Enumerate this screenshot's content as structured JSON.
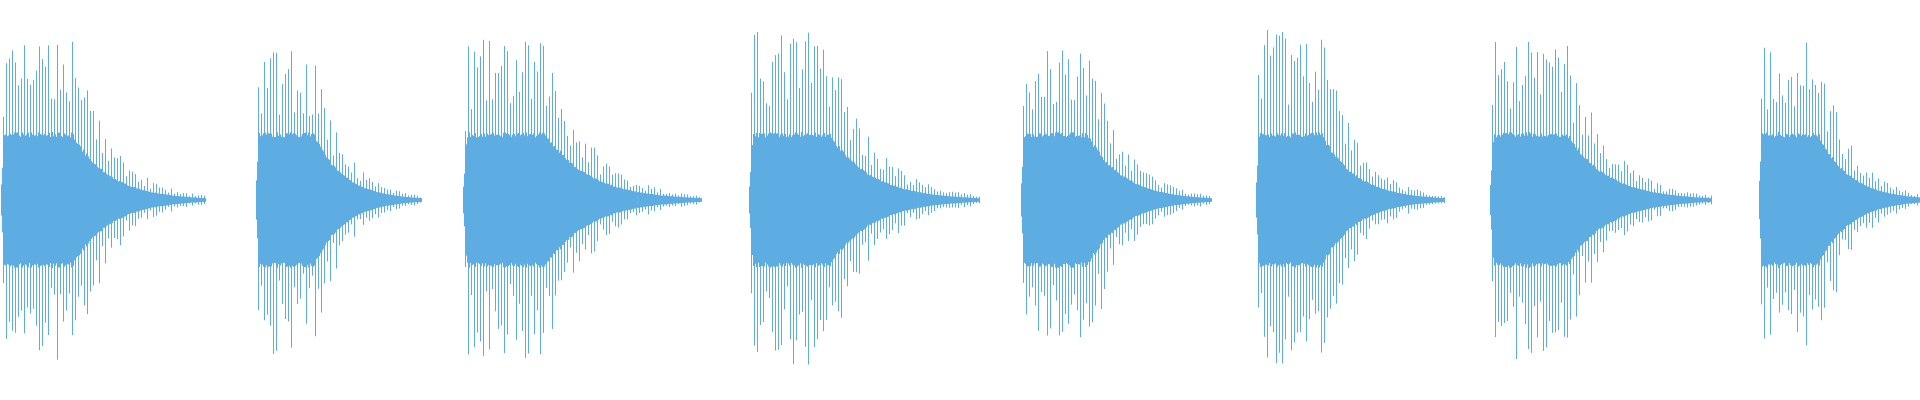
{
  "waveform": {
    "color": "#5dade2",
    "background": "#ffffff",
    "burst_count": 8,
    "shape": "attack-decay bursts, symmetric about a center line"
  }
}
